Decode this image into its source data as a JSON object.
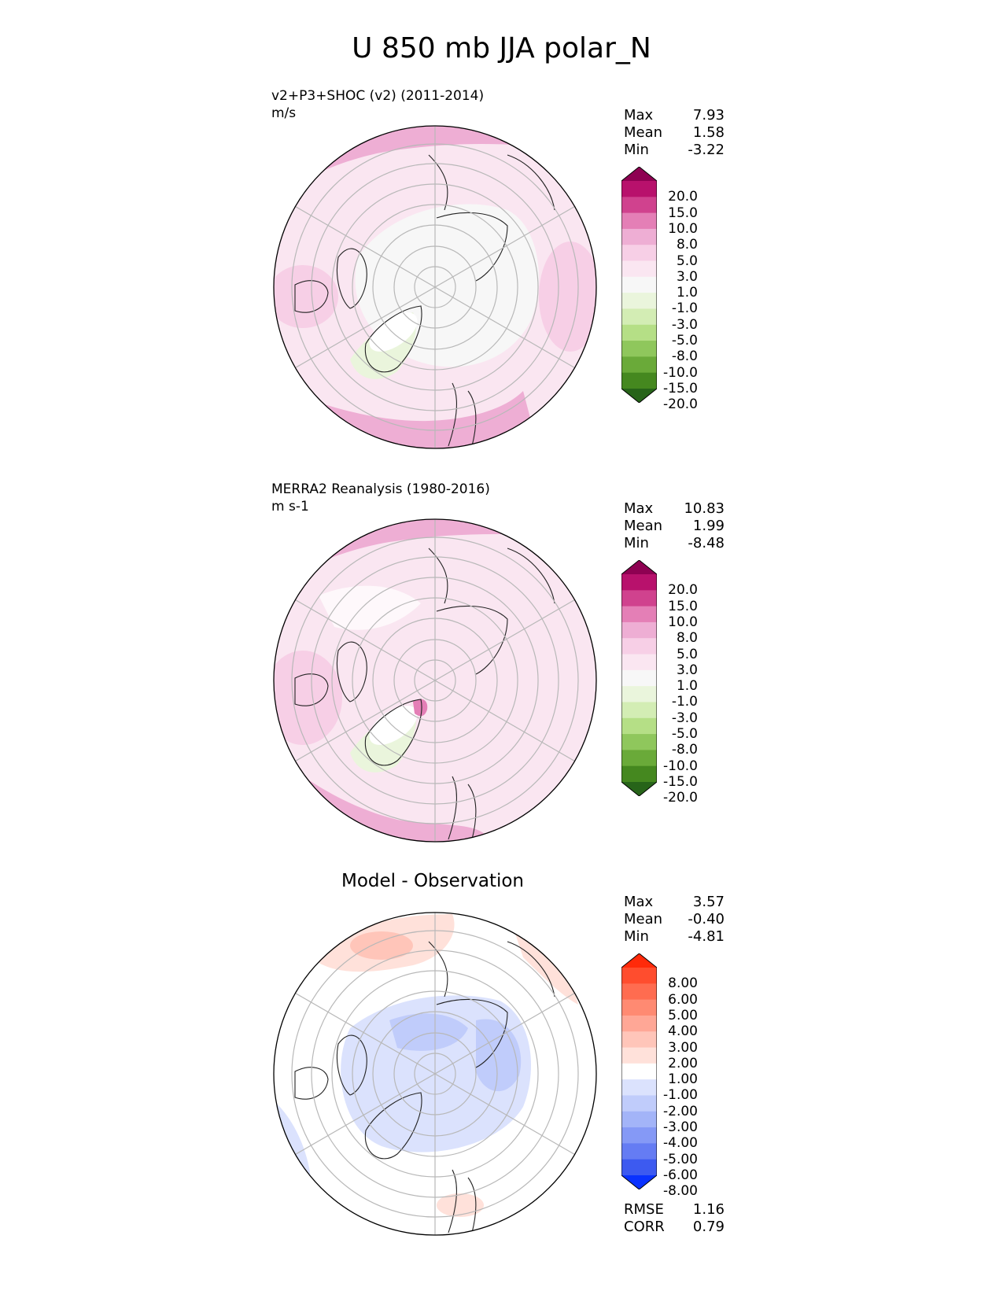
{
  "figure_title": "U 850 mb JJA polar_N",
  "panels": [
    {
      "title": "v2+P3+SHOC (v2) (2011-2014)",
      "units": "m/s",
      "heading": "",
      "stats": [
        {
          "label": "Max",
          "value": "7.93"
        },
        {
          "label": "Mean",
          "value": "1.58"
        },
        {
          "label": "Min",
          "value": "-3.22"
        }
      ],
      "colorbar": {
        "labels": [
          "20.0",
          "15.0",
          "10.0",
          "8.0",
          "5.0",
          "3.0",
          "1.0",
          "-1.0",
          "-3.0",
          "-5.0",
          "-8.0",
          "-10.0",
          "-15.0",
          "-20.0"
        ],
        "colors": [
          "#8e0152",
          "#b8116c",
          "#d0428e",
          "#e47fb6",
          "#eeaed4",
          "#f7cfe6",
          "#fae6f1",
          "#f7f7f7",
          "#eaf5dc",
          "#d3edb4",
          "#b5df86",
          "#8fc75c",
          "#6aaa39",
          "#45881f",
          "#276419"
        ]
      }
    },
    {
      "title": "MERRA2 Reanalysis (1980-2016)",
      "units": "m s-1",
      "heading": "",
      "stats": [
        {
          "label": "Max",
          "value": "10.83"
        },
        {
          "label": "Mean",
          "value": "1.99"
        },
        {
          "label": "Min",
          "value": "-8.48"
        }
      ],
      "colorbar": {
        "labels": [
          "20.0",
          "15.0",
          "10.0",
          "8.0",
          "5.0",
          "3.0",
          "1.0",
          "-1.0",
          "-3.0",
          "-5.0",
          "-8.0",
          "-10.0",
          "-15.0",
          "-20.0"
        ],
        "colors": [
          "#8e0152",
          "#b8116c",
          "#d0428e",
          "#e47fb6",
          "#eeaed4",
          "#f7cfe6",
          "#fae6f1",
          "#f7f7f7",
          "#eaf5dc",
          "#d3edb4",
          "#b5df86",
          "#8fc75c",
          "#6aaa39",
          "#45881f",
          "#276419"
        ]
      }
    },
    {
      "title": "",
      "units": "",
      "heading": "Model - Observation",
      "stats": [
        {
          "label": "Max",
          "value": "3.57"
        },
        {
          "label": "Mean",
          "value": "-0.40"
        },
        {
          "label": "Min",
          "value": "-4.81"
        }
      ],
      "colorbar": {
        "labels": [
          "8.00",
          "6.00",
          "5.00",
          "4.00",
          "3.00",
          "2.00",
          "1.00",
          "-1.00",
          "-2.00",
          "-3.00",
          "-4.00",
          "-5.00",
          "-6.00",
          "-8.00"
        ],
        "colors": [
          "#ff2a0a",
          "#ff4d2e",
          "#ff6c50",
          "#ff8a72",
          "#ffa796",
          "#ffc5b9",
          "#ffe1da",
          "#ffffff",
          "#dbe2fd",
          "#c0ccfb",
          "#a3b4f8",
          "#8599f6",
          "#657cf3",
          "#3d5af0",
          "#0a32ff"
        ]
      },
      "metrics": [
        {
          "label": "RMSE",
          "value": "1.16"
        },
        {
          "label": "CORR",
          "value": "0.79"
        }
      ]
    }
  ]
}
